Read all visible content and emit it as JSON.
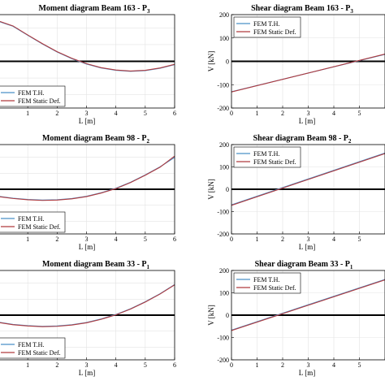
{
  "colors": {
    "fem_th": "#4a90c8",
    "fem_static": "#b03a3e",
    "zero_line": "#000000",
    "grid": "#e3e3e3"
  },
  "chart_data": [
    {
      "id": "m163",
      "type": "line",
      "title": "Moment diagram Beam 163 - P",
      "title_sub": "3",
      "xlabel": "L [m]",
      "ylabel": "",
      "xlim": [
        0,
        6
      ],
      "xticks": [
        0,
        1,
        2,
        3,
        4,
        5,
        6
      ],
      "x_tick_labels": [
        "",
        "1",
        "2",
        "3",
        "4",
        "5",
        "6"
      ],
      "ylim": [
        -140,
        140
      ],
      "zero_line": 0,
      "grid": true,
      "legend_position": "bottom-left",
      "series": [
        {
          "name": "FEM T.H.",
          "color_key": "fem_th",
          "x": [
            0,
            0.5,
            1,
            1.5,
            2,
            2.5,
            3,
            3.5,
            4,
            4.5,
            5,
            5.5,
            6
          ],
          "y": [
            120,
            105,
            78,
            52,
            28,
            8,
            -8,
            -20,
            -27,
            -30,
            -28,
            -21,
            -10
          ]
        },
        {
          "name": "FEM Static Def.",
          "color_key": "fem_static",
          "x": [
            0,
            0.5,
            1,
            1.5,
            2,
            2.5,
            3,
            3.5,
            4,
            4.5,
            5,
            5.5,
            6
          ],
          "y": [
            121,
            106,
            79,
            53,
            29,
            9,
            -7,
            -19,
            -26,
            -29,
            -27,
            -20,
            -9
          ]
        }
      ]
    },
    {
      "id": "v163",
      "type": "line",
      "title": "Shear diagram Beam 163 - P",
      "title_sub": "3",
      "xlabel": "L [m]",
      "ylabel": "V [kN]",
      "xlim": [
        0,
        6
      ],
      "xticks": [
        0,
        1,
        2,
        3,
        4,
        5,
        6
      ],
      "x_tick_labels": [
        "0",
        "1",
        "2",
        "3",
        "4",
        "5",
        ""
      ],
      "ylim": [
        -200,
        200
      ],
      "yticks": [
        -200,
        -100,
        0,
        100,
        200
      ],
      "zero_line": 0,
      "grid": true,
      "legend_position": "top-left",
      "series": [
        {
          "name": "FEM T.H.",
          "color_key": "fem_th",
          "x": [
            0,
            6
          ],
          "y": [
            -130,
            30
          ]
        },
        {
          "name": "FEM Static Def.",
          "color_key": "fem_static",
          "x": [
            0,
            6
          ],
          "y": [
            -131,
            31
          ]
        }
      ]
    },
    {
      "id": "m98",
      "type": "line",
      "title": "Moment diagram Beam 98 - P",
      "title_sub": "2",
      "xlabel": "L [m]",
      "ylabel": "",
      "xlim": [
        0,
        6
      ],
      "xticks": [
        0,
        1,
        2,
        3,
        4,
        5,
        6
      ],
      "x_tick_labels": [
        "",
        "1",
        "2",
        "3",
        "4",
        "5",
        "6"
      ],
      "ylim": [
        -140,
        140
      ],
      "zero_line": 0,
      "grid": true,
      "legend_position": "bottom-left",
      "series": [
        {
          "name": "FEM T.H.",
          "color_key": "fem_th",
          "x": [
            0,
            0.5,
            1,
            1.5,
            2,
            2.5,
            3,
            3.5,
            4,
            4.5,
            5,
            5.5,
            6
          ],
          "y": [
            -22,
            -28,
            -32,
            -34,
            -33,
            -29,
            -22,
            -11,
            3,
            22,
            45,
            70,
            100
          ]
        },
        {
          "name": "FEM Static Def.",
          "color_key": "fem_static",
          "x": [
            0,
            0.5,
            1,
            1.5,
            2,
            2.5,
            3,
            3.5,
            4,
            4.5,
            5,
            5.5,
            6
          ],
          "y": [
            -23,
            -29,
            -33,
            -35,
            -34,
            -30,
            -23,
            -12,
            2,
            21,
            44,
            69,
            104
          ]
        }
      ]
    },
    {
      "id": "v98",
      "type": "line",
      "title": "Shear diagram Beam 98 - P",
      "title_sub": "2",
      "xlabel": "L [m]",
      "ylabel": "V [kN]",
      "xlim": [
        0,
        6
      ],
      "xticks": [
        0,
        1,
        2,
        3,
        4,
        5,
        6
      ],
      "x_tick_labels": [
        "0",
        "1",
        "2",
        "3",
        "4",
        "5",
        ""
      ],
      "ylim": [
        -200,
        200
      ],
      "yticks": [
        -200,
        -100,
        0,
        100,
        200
      ],
      "zero_line": 0,
      "grid": true,
      "legend_position": "top-left",
      "series": [
        {
          "name": "FEM T.H.",
          "color_key": "fem_th",
          "x": [
            0,
            6
          ],
          "y": [
            -70,
            162
          ]
        },
        {
          "name": "FEM Static Def.",
          "color_key": "fem_static",
          "x": [
            0,
            6
          ],
          "y": [
            -72,
            160
          ]
        }
      ]
    },
    {
      "id": "m33",
      "type": "line",
      "title": "Moment diagram Beam 33 - P",
      "title_sub": "1",
      "xlabel": "L [m]",
      "ylabel": "",
      "xlim": [
        0,
        6
      ],
      "xticks": [
        0,
        1,
        2,
        3,
        4,
        5,
        6
      ],
      "x_tick_labels": [
        "",
        "1",
        "2",
        "3",
        "4",
        "5",
        "6"
      ],
      "ylim": [
        -140,
        140
      ],
      "zero_line": 0,
      "grid": true,
      "legend_position": "bottom-left",
      "series": [
        {
          "name": "FEM T.H.",
          "color_key": "fem_th",
          "x": [
            0,
            0.5,
            1,
            1.5,
            2,
            2.5,
            3,
            3.5,
            4,
            4.5,
            5,
            5.5,
            6
          ],
          "y": [
            -22,
            -29,
            -33,
            -35,
            -34,
            -30,
            -23,
            -12,
            2,
            20,
            42,
            67,
            96
          ]
        },
        {
          "name": "FEM Static Def.",
          "color_key": "fem_static",
          "x": [
            0,
            0.5,
            1,
            1.5,
            2,
            2.5,
            3,
            3.5,
            4,
            4.5,
            5,
            5.5,
            6
          ],
          "y": [
            -23,
            -30,
            -34,
            -36,
            -35,
            -31,
            -24,
            -13,
            1,
            19,
            41,
            66,
            95
          ]
        }
      ]
    },
    {
      "id": "v33",
      "type": "line",
      "title": "Shear diagram Beam 33 - P",
      "title_sub": "1",
      "xlabel": "L [m]",
      "ylabel": "V [kN]",
      "xlim": [
        0,
        6
      ],
      "xticks": [
        0,
        1,
        2,
        3,
        4,
        5,
        6
      ],
      "x_tick_labels": [
        "0",
        "1",
        "2",
        "3",
        "4",
        "5",
        ""
      ],
      "ylim": [
        -200,
        200
      ],
      "yticks": [
        -200,
        -100,
        0,
        100,
        200
      ],
      "zero_line": 0,
      "grid": true,
      "legend_position": "top-left",
      "series": [
        {
          "name": "FEM T.H.",
          "color_key": "fem_th",
          "x": [
            0,
            6
          ],
          "y": [
            -67,
            160
          ]
        },
        {
          "name": "FEM Static Def.",
          "color_key": "fem_static",
          "x": [
            0,
            6
          ],
          "y": [
            -69,
            158
          ]
        }
      ]
    }
  ]
}
